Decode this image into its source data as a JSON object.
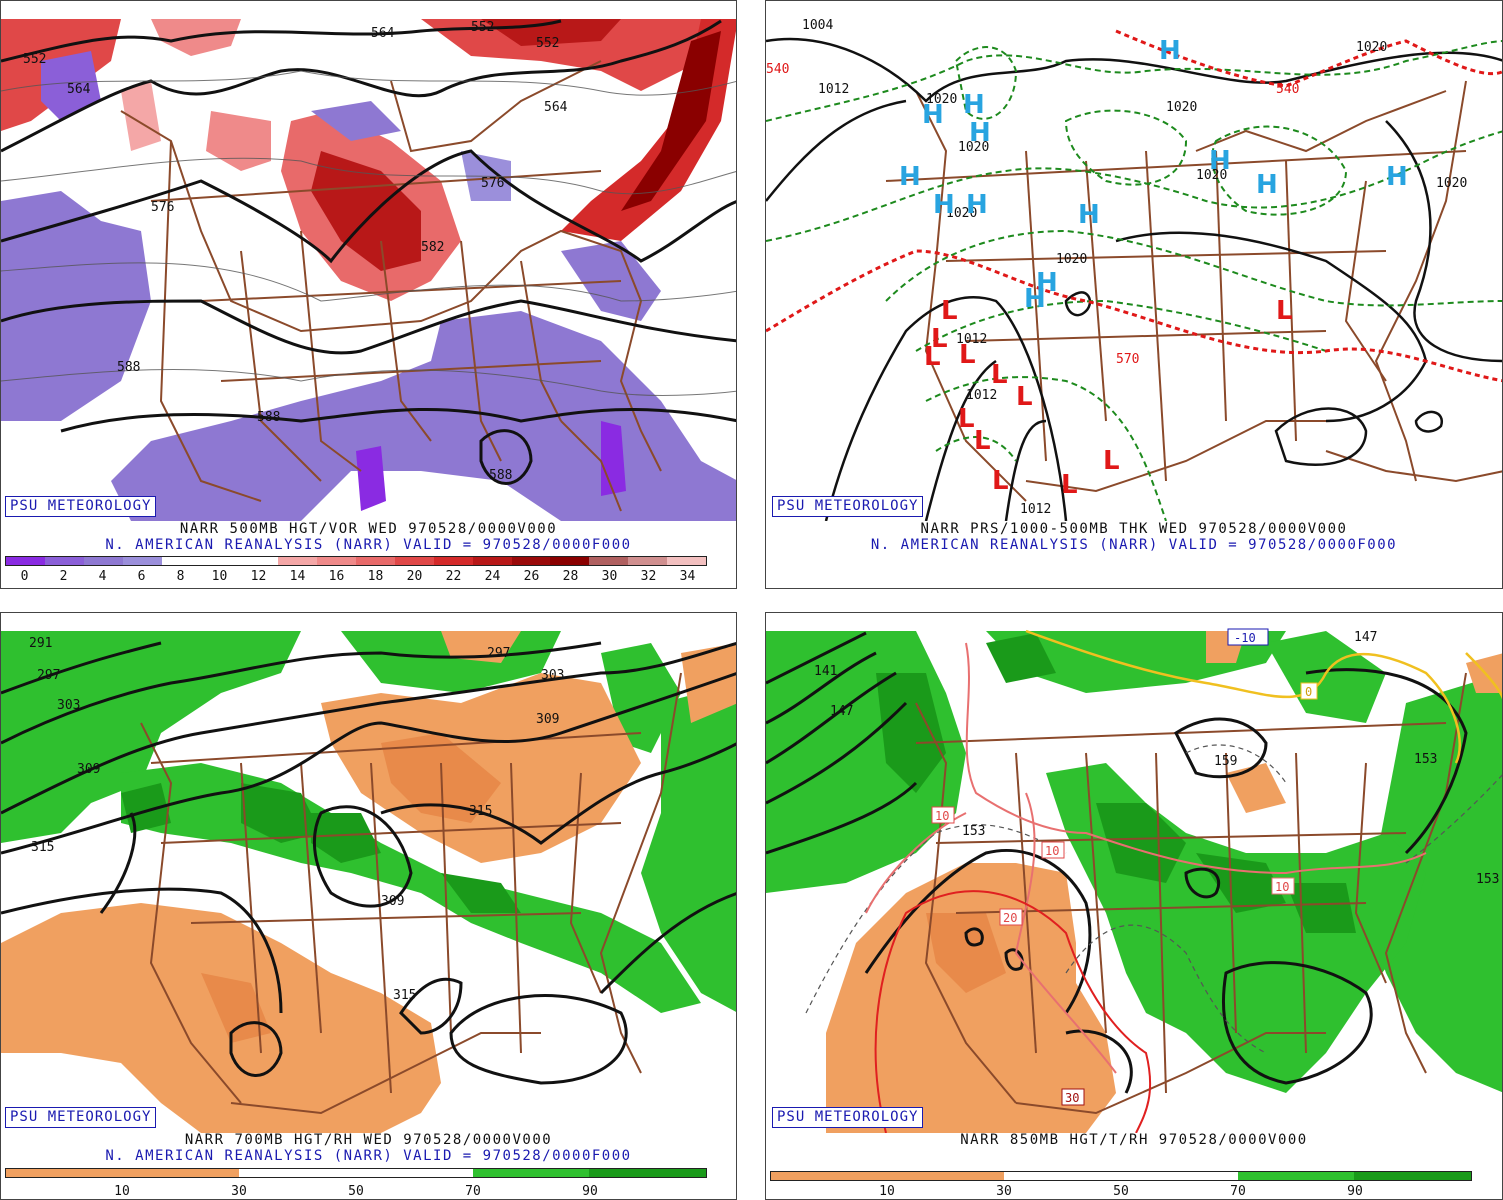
{
  "common": {
    "psu_label": "PSU METEOROLOGY",
    "reanalysis_line": "N. AMERICAN REANALYSIS (NARR) VALID = 970528/0000F000"
  },
  "panels": [
    {
      "id": "vor500",
      "title": "NARR 500MB HGT/VOR WED 970528/0000V000",
      "colorbar": {
        "colors": [
          "#8a2be2",
          "#8b5fd8",
          "#8e78d2",
          "#9b8fdb",
          "#ffffff",
          "#ffffff",
          "#ffffff",
          "#f4a7a7",
          "#ef8a8a",
          "#e86a6a",
          "#e04848",
          "#d42a2a",
          "#b81818",
          "#9a0a0a",
          "#8a0000",
          "#b06060",
          "#d08f8f",
          "#f3c0c0"
        ],
        "ticks": [
          "0",
          "2",
          "4",
          "6",
          "8",
          "10",
          "12",
          "14",
          "16",
          "18",
          "20",
          "22",
          "24",
          "26",
          "28",
          "30",
          "32",
          "34"
        ]
      },
      "contour_labels": [
        "552",
        "564",
        "576",
        "588",
        "588",
        "552",
        "564",
        "576",
        "582",
        "588",
        "564",
        "552"
      ]
    },
    {
      "id": "prs",
      "title": "NARR PRS/1000-500MB THK WED 970528/0000V000",
      "isobar_labels": [
        "1004",
        "1012",
        "1020",
        "1020",
        "1020",
        "1020",
        "1020",
        "1020",
        "1020",
        "1012",
        "1012",
        "1012",
        "1020"
      ],
      "thickness_labels": [
        "540",
        "570",
        "540"
      ],
      "highs": [
        "H",
        "H",
        "H",
        "H",
        "H",
        "H",
        "H",
        "H",
        "H",
        "H",
        "H",
        "H",
        "H"
      ],
      "lows": [
        "L",
        "L",
        "L",
        "L",
        "L",
        "L",
        "L",
        "L",
        "L",
        "L",
        "L",
        "L"
      ]
    },
    {
      "id": "rh700",
      "title": "NARR 700MB HGT/RH WED 970528/0000V000",
      "colorbar": {
        "colors": [
          "#f0a060",
          "#f0a060",
          "#ffffff",
          "#ffffff",
          "#2fc02f",
          "#1a9a1a"
        ],
        "ticks": [
          "10",
          "30",
          "50",
          "70",
          "90"
        ]
      },
      "contour_labels": [
        "291",
        "297",
        "303",
        "309",
        "315",
        "297",
        "303",
        "309",
        "315",
        "309",
        "315"
      ]
    },
    {
      "id": "t850",
      "title": "NARR 850MB HGT/T/RH 970528/0000V000",
      "colorbar": {
        "colors": [
          "#f0a060",
          "#f0a060",
          "#ffffff",
          "#ffffff",
          "#2fc02f",
          "#1a9a1a"
        ],
        "ticks": [
          "10",
          "30",
          "50",
          "70",
          "90"
        ]
      },
      "contour_labels": [
        "141",
        "147",
        "153",
        "159",
        "153",
        "153",
        "147"
      ],
      "temp_labels": [
        "-10",
        "0",
        "10",
        "10",
        "20",
        "30",
        "10"
      ]
    }
  ]
}
